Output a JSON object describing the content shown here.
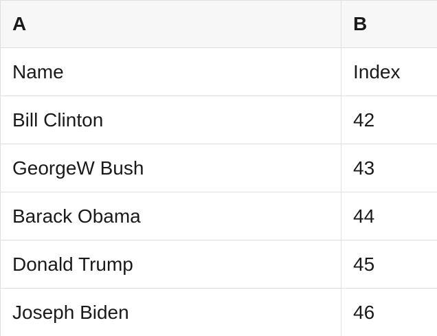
{
  "sheet": {
    "columns": {
      "a": "A",
      "b": "B"
    },
    "rows": [
      {
        "a": "Name",
        "b": "Index"
      },
      {
        "a": "Bill Clinton",
        "b": "42"
      },
      {
        "a": "GeorgeW Bush",
        "b": "43"
      },
      {
        "a": "Barack Obama",
        "b": "44"
      },
      {
        "a": "Donald Trump",
        "b": "45"
      },
      {
        "a": "Joseph Biden",
        "b": "46"
      }
    ],
    "colors": {
      "header_bg": "#f7f7f7",
      "border": "#dedede",
      "text": "#1a1a1a",
      "row_bg": "#ffffff"
    }
  }
}
